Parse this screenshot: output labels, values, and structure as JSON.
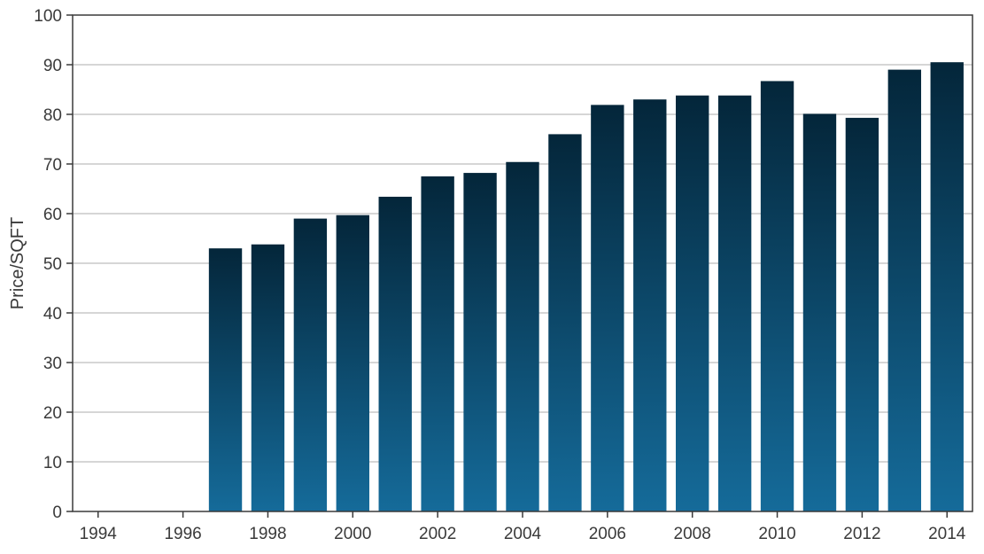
{
  "chart_data": {
    "type": "bar",
    "title": "",
    "xlabel": "",
    "ylabel": "Price/SQFT",
    "x": [
      1997,
      1998,
      1999,
      2000,
      2001,
      2002,
      2003,
      2004,
      2005,
      2006,
      2007,
      2008,
      2009,
      2010,
      2011,
      2012,
      2013,
      2014
    ],
    "values": [
      53.0,
      53.8,
      59.0,
      59.7,
      63.4,
      67.5,
      68.2,
      70.4,
      76.0,
      81.9,
      83.0,
      83.8,
      83.8,
      86.7,
      80.1,
      79.3,
      89.0,
      90.5
    ],
    "xlim": [
      1993.4,
      2014.6
    ],
    "ylim": [
      0,
      100
    ],
    "x_ticks": [
      "1994",
      "1996",
      "1998",
      "2000",
      "2002",
      "2004",
      "2006",
      "2008",
      "2010",
      "2012",
      "2014"
    ],
    "y_ticks": [
      "0",
      "10",
      "20",
      "30",
      "40",
      "50",
      "60",
      "70",
      "80",
      "90",
      "100"
    ],
    "grid": "horizontal",
    "legend": "none",
    "colors": {
      "bar_top": "#04263a",
      "bar_bottom": "#156b9a",
      "grid": "#c8c8c8",
      "axis": "#3a3a3a"
    }
  }
}
